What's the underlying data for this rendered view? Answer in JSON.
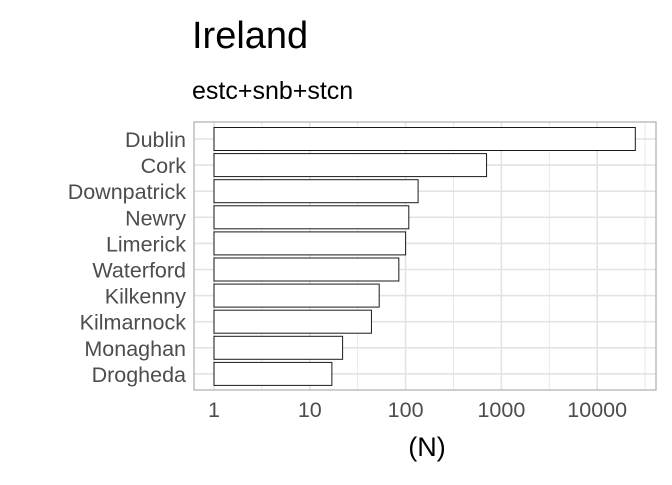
{
  "chart_data": {
    "type": "bar",
    "orientation": "horizontal",
    "title": "Ireland",
    "subtitle": "estc+snb+stcn",
    "xlabel": "(N)",
    "ylabel": "",
    "x_scale": "log10",
    "xlim": [
      1,
      40000
    ],
    "x_ticks": [
      1,
      10,
      100,
      1000,
      10000
    ],
    "x_tick_labels": [
      "1",
      "10",
      "100",
      "1000",
      "10000"
    ],
    "grid": true,
    "legend": "none",
    "categories": [
      "Dublin",
      "Cork",
      "Downpatrick",
      "Newry",
      "Limerick",
      "Waterford",
      "Kilkenny",
      "Kilmarnock",
      "Monaghan",
      "Drogheda"
    ],
    "values": [
      25000,
      700,
      135,
      108,
      100,
      85,
      53,
      44,
      22,
      17
    ],
    "colors": {
      "bar_fill": "#ffffff",
      "bar_stroke": "#1a1a1a",
      "panel_border": "#b3b3b3",
      "grid": "#e3e3e3",
      "tick_text": "#4d4d4d",
      "title_text": "#000000"
    }
  }
}
